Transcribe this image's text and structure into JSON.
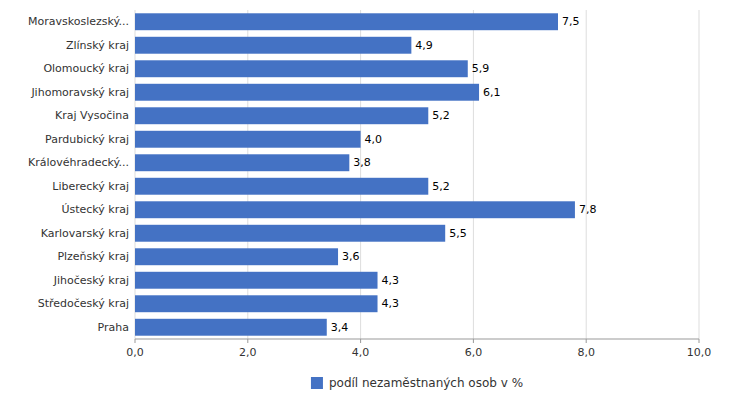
{
  "chart_data": {
    "type": "bar",
    "orientation": "horizontal",
    "categories": [
      "Praha",
      "Středočeský kraj",
      "Jihočeský kraj",
      "Plzeňský kraj",
      "Karlovarský kraj",
      "Ústecký kraj",
      "Liberecký kraj",
      "Královéhradecký...",
      "Pardubický kraj",
      "Kraj Vysočina",
      "Jihomoravský kraj",
      "Olomoucký kraj",
      "Zlínský kraj",
      "Moravskoslezský..."
    ],
    "series": [
      {
        "name": "podíl nezaměstnaných osob v %",
        "color": "#4472C4",
        "values": [
          3.4,
          4.3,
          4.3,
          3.6,
          5.5,
          7.8,
          5.2,
          3.8,
          4.0,
          5.2,
          6.1,
          5.9,
          4.9,
          7.5
        ],
        "value_labels": [
          "3,4",
          "4,3",
          "4,3",
          "3,6",
          "5,5",
          "7,8",
          "5,2",
          "3,8",
          "4,0",
          "5,2",
          "6,1",
          "5,9",
          "4,9",
          "7,5"
        ]
      }
    ],
    "xlim": [
      0,
      10
    ],
    "xticks": [
      {
        "value": 0,
        "label": "0,0"
      },
      {
        "value": 2,
        "label": "2,0"
      },
      {
        "value": 4,
        "label": "4,0"
      },
      {
        "value": 6,
        "label": "6,0"
      },
      {
        "value": 8,
        "label": "8,0"
      },
      {
        "value": 10,
        "label": "10,0"
      }
    ],
    "grid": true,
    "legend": "bottom",
    "data_labels": true
  }
}
